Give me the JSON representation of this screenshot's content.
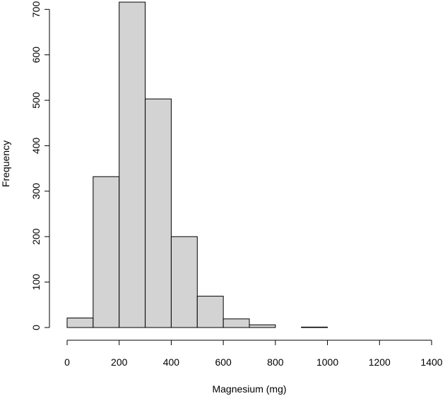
{
  "chart_data": {
    "type": "bar",
    "title": "",
    "xlabel": "Magnesium (mg)",
    "ylabel": "Frequency",
    "bins": [
      {
        "x0": 0,
        "x1": 100,
        "count": 21
      },
      {
        "x0": 100,
        "x1": 200,
        "count": 332
      },
      {
        "x0": 200,
        "x1": 300,
        "count": 716
      },
      {
        "x0": 300,
        "x1": 400,
        "count": 503
      },
      {
        "x0": 400,
        "x1": 500,
        "count": 200
      },
      {
        "x0": 500,
        "x1": 600,
        "count": 69
      },
      {
        "x0": 600,
        "x1": 700,
        "count": 19
      },
      {
        "x0": 700,
        "x1": 800,
        "count": 6
      },
      {
        "x0": 800,
        "x1": 900,
        "count": 0
      },
      {
        "x0": 900,
        "x1": 1000,
        "count": 1
      },
      {
        "x0": 1000,
        "x1": 1100,
        "count": 0
      },
      {
        "x0": 1100,
        "x1": 1200,
        "count": 0
      },
      {
        "x0": 1200,
        "x1": 1300,
        "count": 0
      },
      {
        "x0": 1300,
        "x1": 1400,
        "count": 0
      }
    ],
    "xticks": [
      0,
      200,
      400,
      600,
      800,
      1000,
      1200,
      1400
    ],
    "yticks": [
      0,
      100,
      200,
      300,
      400,
      500,
      600,
      700
    ],
    "xlim": [
      0,
      1400
    ],
    "ylim": [
      0,
      716
    ],
    "grid": false,
    "colors": {
      "bar_fill": "#d3d3d3",
      "bar_stroke": "#000000"
    }
  }
}
